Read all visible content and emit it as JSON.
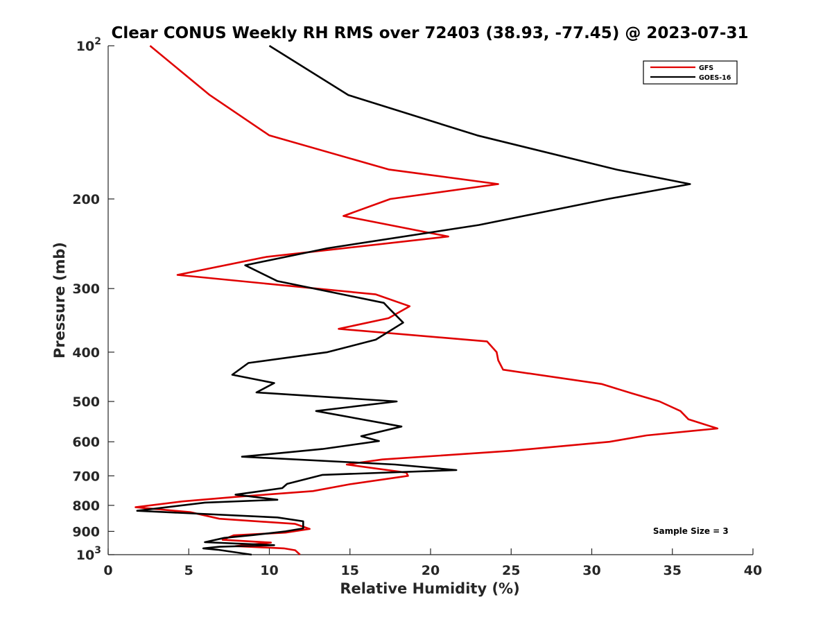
{
  "chart_data": {
    "type": "line",
    "title": "Clear CONUS Weekly RH RMS over 72403 (38.93, -77.45) @ 2023-07-31",
    "xlabel": "Relative Humidity (%)",
    "ylabel": "Pressure (mb)",
    "xlim": [
      0,
      40
    ],
    "ylim": [
      100,
      1000
    ],
    "y_scale": "log",
    "y_reversed": true,
    "grid": false,
    "legend_position": "top-right",
    "x_ticks": [
      {
        "value": 0,
        "label": "0"
      },
      {
        "value": 5,
        "label": "5"
      },
      {
        "value": 10,
        "label": "10"
      },
      {
        "value": 15,
        "label": "15"
      },
      {
        "value": 20,
        "label": "20"
      },
      {
        "value": 25,
        "label": "25"
      },
      {
        "value": 30,
        "label": "30"
      },
      {
        "value": 35,
        "label": "35"
      },
      {
        "value": 40,
        "label": "40"
      }
    ],
    "y_ticks": [
      {
        "value": 100,
        "base": "10",
        "exp": "2"
      },
      {
        "value": 200,
        "label": "200"
      },
      {
        "value": 300,
        "label": "300"
      },
      {
        "value": 400,
        "label": "400"
      },
      {
        "value": 500,
        "label": "500"
      },
      {
        "value": 600,
        "label": "600"
      },
      {
        "value": 700,
        "label": "700"
      },
      {
        "value": 800,
        "label": "800"
      },
      {
        "value": 900,
        "label": "900"
      },
      {
        "value": 1000,
        "base": "10",
        "exp": "3"
      }
    ],
    "series": [
      {
        "name": "GFS",
        "color": "#e00000",
        "points": [
          [
            2.6,
            100
          ],
          [
            6.3,
            125
          ],
          [
            10.0,
            150
          ],
          [
            17.4,
            175
          ],
          [
            24.2,
            187
          ],
          [
            17.5,
            200
          ],
          [
            14.6,
            216
          ],
          [
            21.1,
            237
          ],
          [
            9.8,
            260
          ],
          [
            4.3,
            282
          ],
          [
            16.6,
            308
          ],
          [
            18.7,
            325
          ],
          [
            17.4,
            343
          ],
          [
            14.3,
            360
          ],
          [
            23.5,
            381
          ],
          [
            24.1,
            400
          ],
          [
            24.2,
            415
          ],
          [
            24.5,
            433
          ],
          [
            30.6,
            462
          ],
          [
            32.5,
            482
          ],
          [
            34.2,
            500
          ],
          [
            35.5,
            522
          ],
          [
            36.0,
            542
          ],
          [
            37.8,
            565
          ],
          [
            33.4,
            583
          ],
          [
            31.1,
            600
          ],
          [
            25.0,
            625
          ],
          [
            17.0,
            650
          ],
          [
            14.8,
            665
          ],
          [
            18.5,
            690
          ],
          [
            18.6,
            700
          ],
          [
            15.0,
            727
          ],
          [
            12.7,
            750
          ],
          [
            7.9,
            770
          ],
          [
            4.6,
            786
          ],
          [
            1.7,
            807
          ],
          [
            5.1,
            825
          ],
          [
            6.9,
            850
          ],
          [
            11.6,
            870
          ],
          [
            12.5,
            890
          ],
          [
            11.0,
            905
          ],
          [
            7.8,
            916
          ],
          [
            7.1,
            935
          ],
          [
            10.1,
            947
          ],
          [
            7.9,
            962
          ],
          [
            10.9,
            972
          ],
          [
            11.6,
            980
          ],
          [
            11.9,
            1000
          ]
        ]
      },
      {
        "name": "GOES-16",
        "color": "#000000",
        "points": [
          [
            10.0,
            100
          ],
          [
            14.9,
            125
          ],
          [
            22.9,
            150
          ],
          [
            31.5,
            175
          ],
          [
            36.1,
            187
          ],
          [
            31.0,
            200
          ],
          [
            23.0,
            225
          ],
          [
            13.6,
            250
          ],
          [
            8.5,
            270
          ],
          [
            10.5,
            290
          ],
          [
            17.1,
            320
          ],
          [
            17.5,
            330
          ],
          [
            18.3,
            350
          ],
          [
            16.6,
            378
          ],
          [
            13.6,
            400
          ],
          [
            8.7,
            420
          ],
          [
            7.7,
            443
          ],
          [
            10.3,
            460
          ],
          [
            9.2,
            480
          ],
          [
            17.9,
            500
          ],
          [
            12.9,
            522
          ],
          [
            18.2,
            560
          ],
          [
            15.7,
            585
          ],
          [
            16.8,
            598
          ],
          [
            13.3,
            620
          ],
          [
            8.3,
            642
          ],
          [
            17.8,
            665
          ],
          [
            21.6,
            682
          ],
          [
            13.3,
            697
          ],
          [
            11.1,
            726
          ],
          [
            10.8,
            740
          ],
          [
            7.9,
            762
          ],
          [
            10.5,
            780
          ],
          [
            6.0,
            790
          ],
          [
            1.8,
            820
          ],
          [
            10.5,
            845
          ],
          [
            12.1,
            860
          ],
          [
            12.1,
            888
          ],
          [
            11.0,
            900
          ],
          [
            9.0,
            915
          ],
          [
            7.2,
            927
          ],
          [
            6.0,
            945
          ],
          [
            10.3,
            958
          ],
          [
            6.9,
            965
          ],
          [
            5.9,
            972
          ],
          [
            6.8,
            978
          ],
          [
            8.9,
            1000
          ]
        ]
      }
    ],
    "annotations": [
      {
        "text": "Sample Size = 3",
        "x": 33.8,
        "y": 910
      }
    ]
  }
}
